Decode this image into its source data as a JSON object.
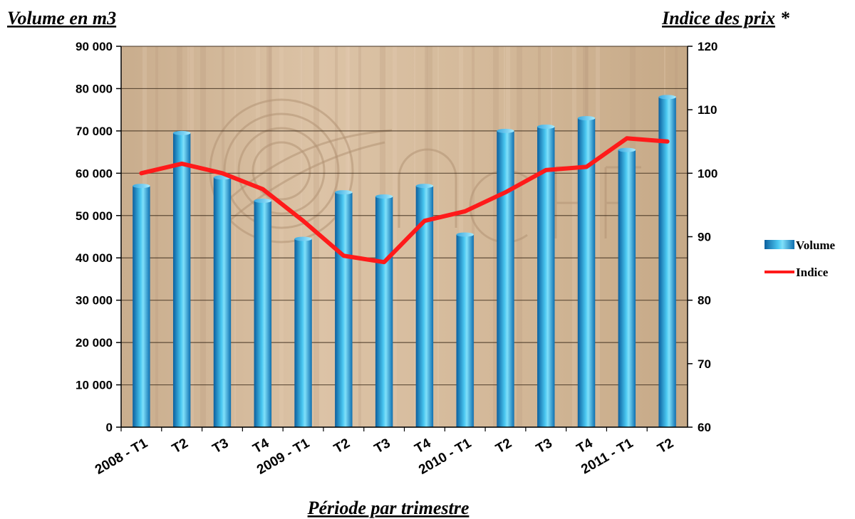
{
  "chart_data": {
    "type": "bar",
    "categories": [
      "2008 - T1",
      "T2",
      "T3",
      "T4",
      "2009 - T1",
      "T2",
      "T3",
      "T4",
      "2010 - T1",
      "T2",
      "T3",
      "T4",
      "2011 - T1",
      "T2"
    ],
    "series": [
      {
        "name": "Volume",
        "type": "bar",
        "axis": "left",
        "color": "#1e9fe0",
        "values": [
          57000,
          69500,
          59000,
          53500,
          44500,
          55500,
          54500,
          57000,
          45500,
          70000,
          71000,
          73000,
          65500,
          78000
        ]
      },
      {
        "name": "Indice",
        "type": "line",
        "axis": "right",
        "color": "#ff1a1a",
        "values": [
          100,
          101.5,
          100,
          97.5,
          92.5,
          87,
          86,
          92.5,
          94,
          97,
          100.5,
          101,
          105.5,
          105
        ]
      }
    ],
    "ylabel": "Volume en m3",
    "ylabel_right": "Indice des prix",
    "ylabel_right_marker": "*",
    "xlabel": "Période par trimestre",
    "ylim": [
      0,
      90000
    ],
    "ylim_right": [
      60,
      120
    ],
    "yticks": [
      "0",
      "10 000",
      "20 000",
      "30 000",
      "40 000",
      "50 000",
      "60 000",
      "70 000",
      "80 000",
      "90 000"
    ],
    "yticks_right": [
      "60",
      "70",
      "80",
      "90",
      "100",
      "110",
      "120"
    ],
    "grid": true,
    "legend_position": "right",
    "background": "wood-texture"
  }
}
